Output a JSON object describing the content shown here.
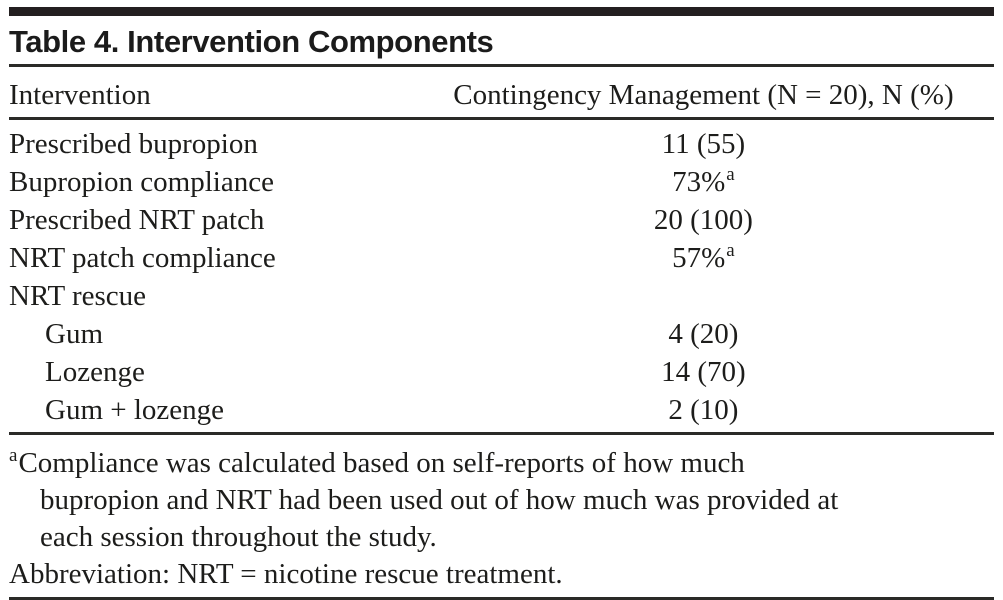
{
  "page": {
    "title": "Table 4. Intervention Components"
  },
  "colors": {
    "ink": "#1d1d1b",
    "bar": "#231f20",
    "rule": "#2a2a28"
  },
  "table": {
    "columns": [
      "Intervention",
      "Contingency Management (N = 20), N (%)"
    ],
    "rows": [
      {
        "label": "Prescribed bupropion",
        "value": "11 (55)"
      },
      {
        "label": "Bupropion compliance",
        "value": "73%",
        "sup": "a"
      },
      {
        "label": "Prescribed NRT patch",
        "value": "20 (100)"
      },
      {
        "label": "NRT patch compliance",
        "value": "57%",
        "sup": "a"
      },
      {
        "label": "NRT rescue",
        "value": ""
      },
      {
        "label": "Gum",
        "value": "4 (20)",
        "indent": true
      },
      {
        "label": "Lozenge",
        "value": "14 (70)",
        "indent": true
      },
      {
        "label": "Gum + lozenge",
        "value": "2 (10)",
        "indent": true
      }
    ]
  },
  "footnotes": {
    "marker": "a",
    "lines": [
      "Compliance was calculated based on self-reports of how much",
      "bupropion and NRT had been used out of how much was provided at",
      "each session throughout the study."
    ],
    "abbreviation": "Abbreviation: NRT = nicotine rescue treatment."
  }
}
